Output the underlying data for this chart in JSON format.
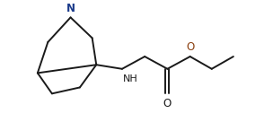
{
  "bg_color": "#ffffff",
  "line_color": "#1a1a1a",
  "N_color": "#1a3a8a",
  "O_color": "#8b4010",
  "line_width": 1.4,
  "fig_width": 3.04,
  "fig_height": 1.36,
  "dpi": 100,
  "font_size_atom": 8.5,
  "xlim": [
    0.0,
    11.5
  ],
  "ylim": [
    -0.5,
    5.2
  ]
}
